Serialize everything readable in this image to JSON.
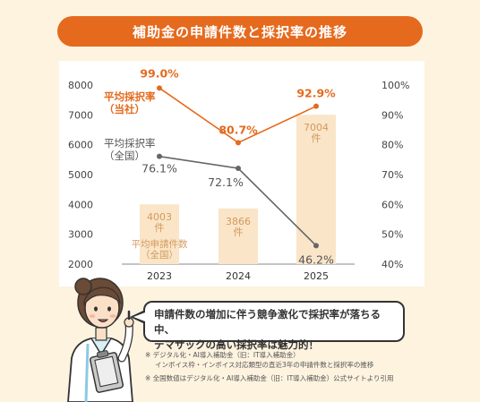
{
  "header": {
    "title": "補助金の申請件数と採択率の推移"
  },
  "chart_data": {
    "type": "bar+line",
    "categories": [
      "2023",
      "2024",
      "2025"
    ],
    "y_left": {
      "ticks": [
        "8000",
        "7000",
        "6000",
        "5000",
        "4000",
        "3000",
        "2000"
      ],
      "min": 2000,
      "max": 8000
    },
    "y_right": {
      "ticks": [
        "100%",
        "90%",
        "80%",
        "70%",
        "60%",
        "50%",
        "40%"
      ],
      "min": 40,
      "max": 100
    },
    "bars": {
      "name": "平均申請件数（全国）",
      "values": [
        4003,
        3866,
        7004
      ],
      "value_labels": [
        "4003\n件",
        "3866\n件",
        "7004\n件"
      ],
      "color": "#fae5c8",
      "label_color": "#d39a5c"
    },
    "series": [
      {
        "name": "平均採択率（当社）",
        "values": [
          99.0,
          80.7,
          92.9
        ],
        "value_labels": [
          "99.0%",
          "80.7%",
          "92.9%"
        ],
        "color": "#e56a1e"
      },
      {
        "name": "平均採択率（全国）",
        "values": [
          76.1,
          72.1,
          46.2
        ],
        "value_labels": [
          "76.1%",
          "72.1%",
          "46.2%"
        ],
        "color": "#666666"
      }
    ],
    "series_labels": {
      "company": "平均採択率\n（当社）",
      "national": "平均採択率\n（全国）",
      "bars": "平均申請件数\n（全国）"
    },
    "grid": false
  },
  "callout": {
    "line1": "申請件数の増加に伴う競争激化で採択率が落ちる中、",
    "line2": "テマサックの高い採択率は魅力的！"
  },
  "notes": {
    "note1_line1": "※ デジタル化・AI導入補助金（旧：IT導入補助金）",
    "note1_line2": "インボイス枠・インボイス対応類型の直近3年の申請件数と採択率の推移",
    "note2": "※ 全国数値はデジタル化・AI導入補助金（旧：IT導入補助金）公式サイトより引用"
  },
  "colors": {
    "accent": "#e56a1e",
    "background": "#fdf3df"
  }
}
